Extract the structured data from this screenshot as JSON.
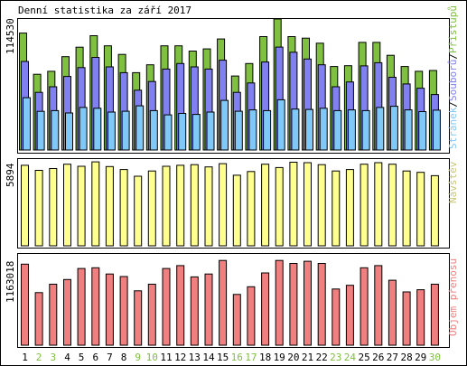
{
  "title": "Denní statistika za září 2017",
  "colors": {
    "background": "#ffffff",
    "panel_border": "#000000",
    "hits": "#80c040",
    "files": "#8080f0",
    "pages": "#80c8f8",
    "visits": "#ffff90",
    "kbytes": "#f08080",
    "weekday_label": "#000000",
    "weekend_label": "#80c040"
  },
  "legend": {
    "hits": "Přístupů",
    "files": "Souborů",
    "pages": "Stránek",
    "separator": "/",
    "visits": "Návštěv",
    "kbytes": "Objem přenosu"
  },
  "chart_data": {
    "type": "bar",
    "title": "Denní statistika za září 2017",
    "categories": [
      "1",
      "2",
      "3",
      "4",
      "5",
      "6",
      "7",
      "8",
      "9",
      "10",
      "11",
      "12",
      "13",
      "14",
      "15",
      "16",
      "17",
      "18",
      "19",
      "20",
      "21",
      "22",
      "23",
      "24",
      "25",
      "26",
      "27",
      "28",
      "29",
      "30"
    ],
    "weekend_days": [
      "2",
      "3",
      "9",
      "10",
      "16",
      "17",
      "23",
      "24",
      "30"
    ],
    "panels": [
      {
        "id": "requests",
        "axis_label": "114530",
        "ylim": [
          0,
          114530
        ],
        "series": [
          {
            "name": "Přístupů",
            "key": "hits",
            "values": [
              102200,
              66200,
              68800,
              81600,
              89900,
              99900,
              91100,
              83600,
              67600,
              74500,
              91100,
              91100,
              86500,
              88400,
              97100,
              64700,
              75600,
              99100,
              114500,
              99100,
              97800,
              93400,
              73000,
              73700,
              94100,
              94100,
              82800,
              73000,
              68800,
              69500
            ]
          },
          {
            "name": "Souborů",
            "key": "files",
            "values": [
              77400,
              50400,
              55300,
              64300,
              72000,
              81000,
              72700,
              67600,
              52300,
              59900,
              70800,
              75600,
              72700,
              70800,
              78500,
              50400,
              58600,
              76900,
              90000,
              85500,
              79500,
              74500,
              55300,
              59500,
              73500,
              76300,
              63600,
              57700,
              54000,
              48500
            ]
          },
          {
            "name": "Stránek",
            "key": "pages",
            "values": [
              45700,
              33800,
              34400,
              32400,
              37200,
              36500,
              33200,
              33900,
              38600,
              34400,
              30700,
              32000,
              31100,
              33200,
              43400,
              33900,
              35100,
              34400,
              43900,
              35800,
              35500,
              36500,
              34400,
              35100,
              34400,
              37200,
              38200,
              35100,
              33600,
              34800
            ]
          }
        ]
      },
      {
        "id": "visits",
        "axis_label": "5894",
        "ylim": [
          0,
          5894
        ],
        "series": [
          {
            "name": "Návštěv",
            "key": "visits",
            "values": [
              5650,
              5290,
              5420,
              5720,
              5580,
              5890,
              5560,
              5350,
              4880,
              5250,
              5580,
              5650,
              5690,
              5530,
              5760,
              4950,
              5210,
              5720,
              5490,
              5860,
              5830,
              5690,
              5250,
              5350,
              5720,
              5830,
              5720,
              5250,
              5150,
              4920
            ]
          }
        ]
      },
      {
        "id": "kbytes",
        "axis_label": "1163018",
        "ylim": [
          0,
          1163018
        ],
        "series": [
          {
            "name": "Objem přenosu",
            "key": "kbytes",
            "values": [
              1110000,
              720000,
              835000,
              900000,
              1050000,
              1060000,
              975000,
              940000,
              745000,
              835000,
              1050000,
              1090000,
              935000,
              975000,
              1160000,
              695000,
              800000,
              990000,
              1160000,
              1120000,
              1150000,
              1120000,
              770000,
              820000,
              1060000,
              1090000,
              890000,
              730000,
              760000,
              835000
            ]
          }
        ]
      }
    ]
  }
}
